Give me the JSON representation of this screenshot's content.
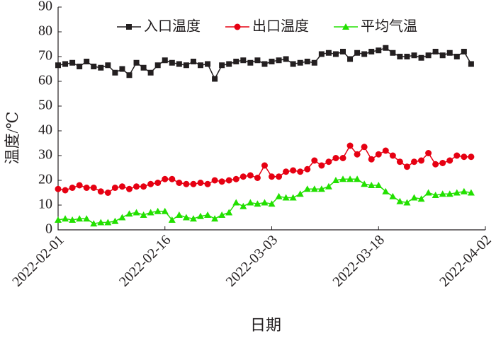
{
  "chart_data": {
    "type": "line",
    "x": [
      "2022-02-01",
      "2022-02-02",
      "2022-02-03",
      "2022-02-04",
      "2022-02-05",
      "2022-02-06",
      "2022-02-07",
      "2022-02-08",
      "2022-02-09",
      "2022-02-10",
      "2022-02-11",
      "2022-02-12",
      "2022-02-13",
      "2022-02-14",
      "2022-02-15",
      "2022-02-16",
      "2022-02-17",
      "2022-02-18",
      "2022-02-19",
      "2022-02-20",
      "2022-02-21",
      "2022-02-22",
      "2022-02-23",
      "2022-02-24",
      "2022-02-25",
      "2022-02-26",
      "2022-02-27",
      "2022-02-28",
      "2022-03-01",
      "2022-03-02",
      "2022-03-03",
      "2022-03-04",
      "2022-03-05",
      "2022-03-06",
      "2022-03-07",
      "2022-03-08",
      "2022-03-09",
      "2022-03-10",
      "2022-03-11",
      "2022-03-12",
      "2022-03-13",
      "2022-03-14",
      "2022-03-15",
      "2022-03-16",
      "2022-03-17",
      "2022-03-18",
      "2022-03-19",
      "2022-03-20",
      "2022-03-21",
      "2022-03-22",
      "2022-03-23",
      "2022-03-24",
      "2022-03-25",
      "2022-03-26",
      "2022-03-27",
      "2022-03-28",
      "2022-03-29",
      "2022-03-30",
      "2022-03-31"
    ],
    "series": [
      {
        "name": "入口温度",
        "color": "#231f20",
        "marker": "square",
        "values": [
          66.5,
          67,
          67.5,
          66,
          68,
          66,
          65.5,
          66.5,
          63.5,
          65,
          62.5,
          67.5,
          65.5,
          63.5,
          66.5,
          68.5,
          67.5,
          67,
          66.5,
          68,
          66.5,
          67,
          61,
          66.5,
          67,
          68,
          68.5,
          67.5,
          68.5,
          67,
          68,
          68.5,
          69,
          67,
          67.5,
          68,
          67.5,
          71,
          71.5,
          71,
          72,
          69,
          71.5,
          71,
          72,
          72.5,
          73.5,
          71.5,
          70,
          70,
          70.5,
          69.5,
          70.5,
          72,
          70.5,
          71.5,
          70,
          72,
          67
        ]
      },
      {
        "name": "出口温度",
        "color": "#e60012",
        "marker": "circle",
        "values": [
          16.5,
          16,
          17,
          18,
          17,
          17,
          15.5,
          15,
          17,
          17.5,
          16.5,
          17.5,
          17.5,
          18.5,
          19,
          20.5,
          20.5,
          19,
          18.5,
          18.5,
          19,
          18.5,
          20,
          19.5,
          20,
          20.5,
          21.5,
          22,
          21,
          26,
          21.5,
          21.5,
          23.5,
          24,
          23.5,
          24.5,
          28,
          26,
          27.5,
          29,
          29,
          34,
          30.5,
          33.5,
          28.5,
          30.5,
          32,
          30,
          27.5,
          25.5,
          27.5,
          28,
          31,
          26.5,
          27,
          28,
          30,
          29.5,
          29.5
        ]
      },
      {
        "name": "平均气温",
        "color": "#22e000",
        "marker": "triangle",
        "values": [
          4,
          4.5,
          4,
          4.5,
          4.5,
          2.5,
          3,
          3,
          3.5,
          5,
          6.5,
          7,
          6,
          7,
          7.5,
          7.5,
          4,
          6,
          5,
          4.5,
          5.5,
          6,
          4.5,
          6,
          7,
          11,
          9.5,
          11,
          10.5,
          11,
          10.5,
          13.5,
          13,
          13,
          14.5,
          16.5,
          16.5,
          16.5,
          17.5,
          20,
          20.5,
          20.5,
          20.5,
          18.5,
          18,
          18,
          15.5,
          13.5,
          11.5,
          11,
          13,
          12.5,
          15,
          14,
          14.5,
          14.5,
          15,
          15.5,
          15
        ]
      }
    ],
    "xlabel": "日期",
    "ylabel": "温度/℃",
    "xlim": [
      "2022-02-01",
      "2022-04-02"
    ],
    "xticks": [
      "2022-02-01",
      "2022-02-16",
      "2022-03-03",
      "2022-03-18",
      "2022-04-02"
    ],
    "ylim": [
      0,
      90
    ],
    "yticks": [
      0,
      10,
      20,
      30,
      40,
      50,
      60,
      70,
      80,
      90
    ],
    "legend": "top"
  }
}
